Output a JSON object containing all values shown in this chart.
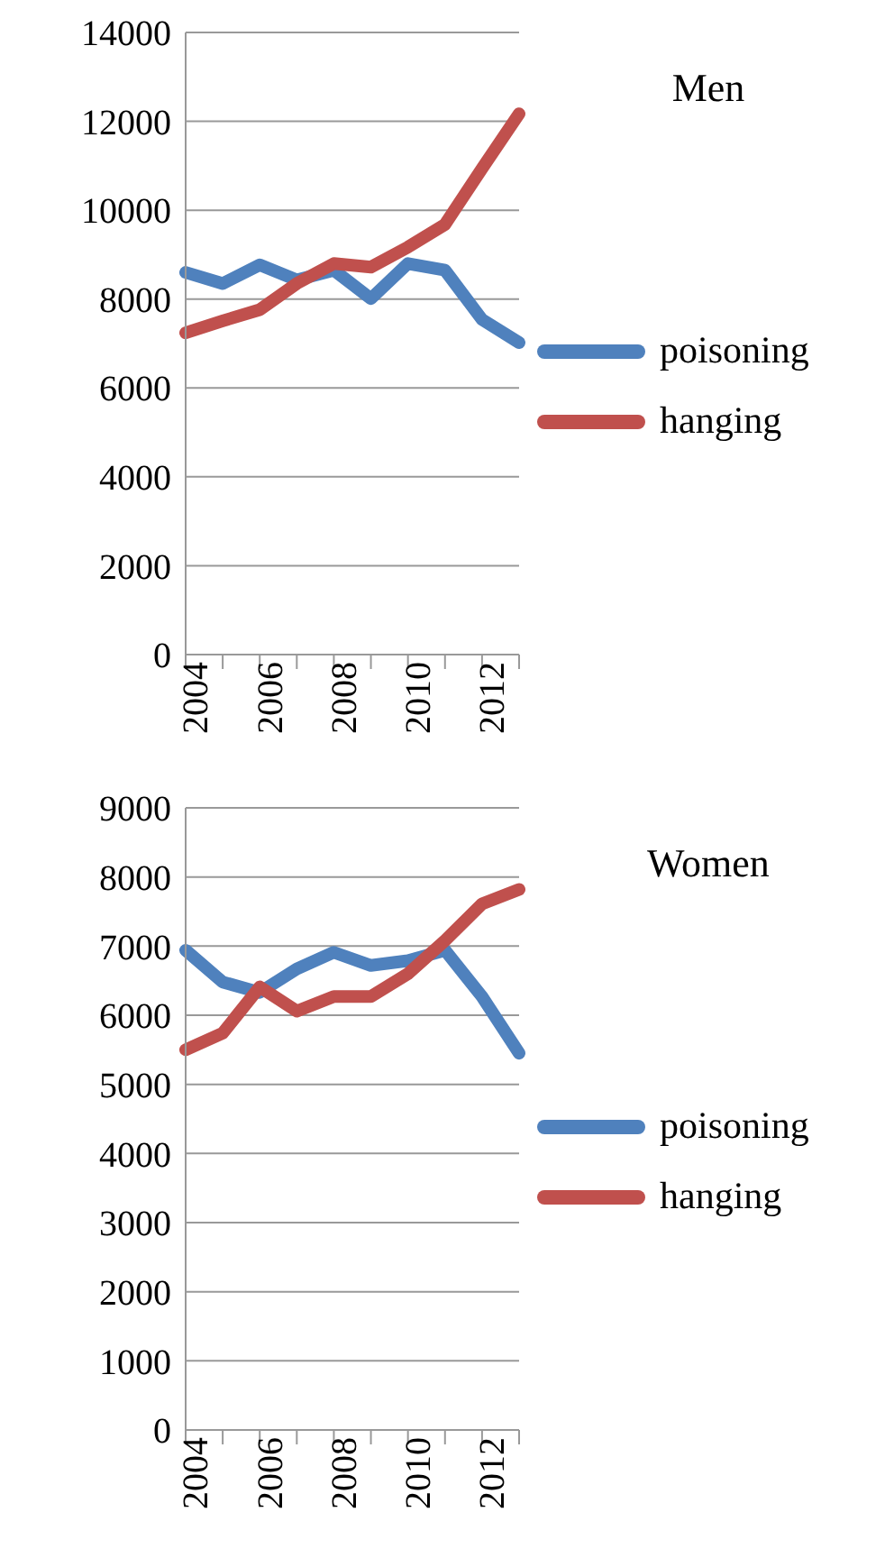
{
  "chart_data": [
    {
      "type": "line",
      "annotations": [
        "Men"
      ],
      "categories": [
        "2004",
        null,
        "2006",
        null,
        "2008",
        null,
        "2010",
        null,
        "2012",
        null
      ],
      "ylim": [
        0,
        14000
      ],
      "yticks": [
        0,
        2000,
        4000,
        6000,
        8000,
        10000,
        12000,
        14000
      ],
      "grid": "y",
      "legend": "right",
      "marker": "none",
      "series": [
        {
          "name": "poisoning",
          "color": "#4f81bd",
          "values": [
            8600,
            8350,
            8770,
            8430,
            8650,
            8010,
            8800,
            8650,
            7540,
            7020
          ]
        },
        {
          "name": "hanging",
          "color": "#c0504d",
          "values": [
            7240,
            7510,
            7760,
            8350,
            8800,
            8720,
            9170,
            9680,
            10940,
            12170
          ]
        }
      ]
    },
    {
      "type": "line",
      "annotations": [
        "Women"
      ],
      "categories": [
        "2004",
        null,
        "2006",
        null,
        "2008",
        null,
        "2010",
        null,
        "2012",
        null
      ],
      "ylim": [
        0,
        9000
      ],
      "yticks": [
        0,
        1000,
        2000,
        3000,
        4000,
        5000,
        6000,
        7000,
        8000,
        9000
      ],
      "grid": "y",
      "legend": "right",
      "marker": "none",
      "series": [
        {
          "name": "poisoning",
          "color": "#4f81bd",
          "values": [
            6940,
            6480,
            6330,
            6670,
            6910,
            6720,
            6790,
            6940,
            6270,
            5450
          ]
        },
        {
          "name": "hanging",
          "color": "#c0504d",
          "values": [
            5500,
            5740,
            6410,
            6060,
            6270,
            6270,
            6600,
            7080,
            7610,
            7820
          ]
        }
      ]
    }
  ]
}
